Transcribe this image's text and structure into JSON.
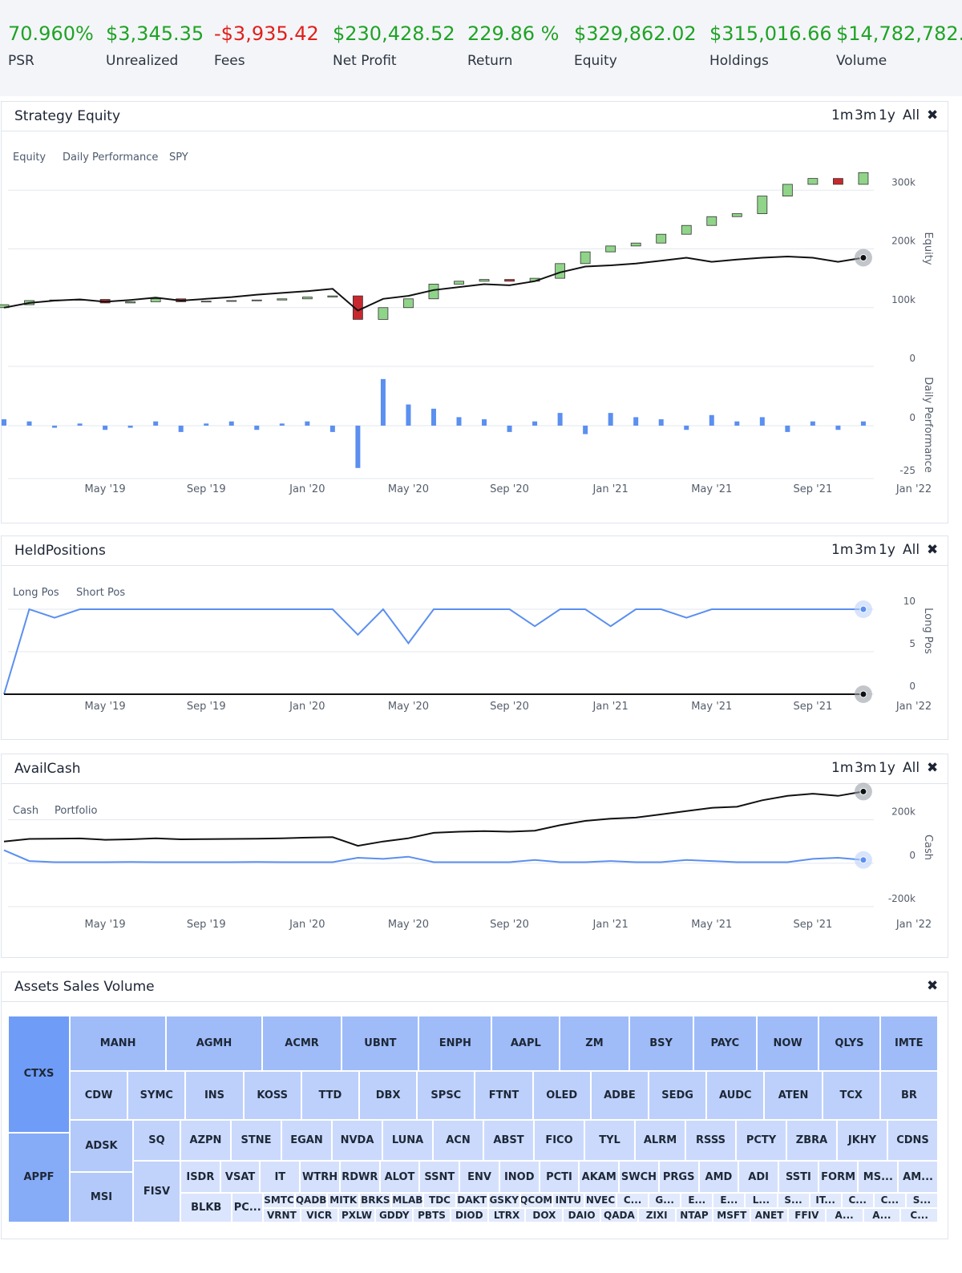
{
  "stats": [
    {
      "value": "70.960%",
      "label": "PSR",
      "color": "#1fa326"
    },
    {
      "value": "$3,345.35",
      "label": "Unrealized",
      "color": "#1fa326"
    },
    {
      "value": "-$3,935.42",
      "label": "Fees",
      "color": "#e0201c"
    },
    {
      "value": "$230,428.52",
      "label": "Net Profit",
      "color": "#1fa326"
    },
    {
      "value": "229.86 %",
      "label": "Return",
      "color": "#1fa326"
    },
    {
      "value": "$329,862.02",
      "label": "Equity",
      "color": "#1fa326"
    },
    {
      "value": "$315,016.66",
      "label": "Holdings",
      "color": "#1fa326"
    },
    {
      "value": "$14,782,782.",
      "label": "Volume",
      "color": "#1fa326"
    }
  ],
  "range_buttons": [
    "1m",
    "3m",
    "1y",
    "All"
  ],
  "close_icon": "✖",
  "chart_data": [
    {
      "type": "candlestick",
      "title": "Strategy Equity",
      "x": [
        "2019-01",
        "2019-02",
        "2019-03",
        "2019-04",
        "2019-05",
        "2019-06",
        "2019-07",
        "2019-08",
        "2019-09",
        "2019-10",
        "2019-11",
        "2019-12",
        "2020-01",
        "2020-02",
        "2020-03",
        "2020-04",
        "2020-05",
        "2020-06",
        "2020-07",
        "2020-08",
        "2020-09",
        "2020-10",
        "2020-11",
        "2020-12",
        "2021-01",
        "2021-02",
        "2021-03",
        "2021-04",
        "2021-05",
        "2021-06",
        "2021-07",
        "2021-08",
        "2021-09",
        "2021-10",
        "2021-11"
      ],
      "xlim": [
        "2019-01",
        "2022-01"
      ],
      "xticks": [
        {
          "value": "2019-05",
          "label": "May '19"
        },
        {
          "value": "2019-09",
          "label": "Sep '19"
        },
        {
          "value": "2020-01",
          "label": "Jan '20"
        },
        {
          "value": "2020-05",
          "label": "May '20"
        },
        {
          "value": "2020-09",
          "label": "Sep '20"
        },
        {
          "value": "2021-01",
          "label": "Jan '21"
        },
        {
          "value": "2021-05",
          "label": "May '21"
        },
        {
          "value": "2021-09",
          "label": "Sep '21"
        },
        {
          "value": "2022-01",
          "label": "Jan '22"
        }
      ],
      "ylim": [
        0,
        370000
      ],
      "yticks": [
        0,
        {
          "value": 100000,
          "label": "100k"
        },
        {
          "value": 200000,
          "label": "200k"
        },
        {
          "value": 300000,
          "label": "300k"
        }
      ],
      "y_label": "Equity",
      "y2lim": [
        -25,
        28
      ],
      "y2ticks": [
        -25,
        0
      ],
      "y2_label": "Daily Performance",
      "series": [
        {
          "name": "Equity",
          "type": "candlestick",
          "up_color": "#90d48a",
          "down_color": "#c8282d",
          "open": [
            100000,
            105000,
            112000,
            113000,
            114000,
            108000,
            110000,
            115000,
            110000,
            111000,
            112000,
            113000,
            115000,
            118000,
            120000,
            80000,
            100000,
            115000,
            140000,
            145000,
            148000,
            145000,
            150000,
            175000,
            195000,
            205000,
            210000,
            225000,
            240000,
            255000,
            260000,
            290000,
            310000,
            320000,
            310000
          ],
          "close": [
            105000,
            112000,
            113000,
            114000,
            108000,
            110000,
            115000,
            110000,
            111000,
            112000,
            113000,
            115000,
            118000,
            120000,
            80000,
            100000,
            115000,
            140000,
            145000,
            148000,
            145000,
            150000,
            175000,
            195000,
            205000,
            210000,
            225000,
            240000,
            255000,
            260000,
            290000,
            310000,
            320000,
            310000,
            330000
          ]
        },
        {
          "name": "Daily Performance",
          "type": "bar",
          "axis": "y2",
          "color": "#5b8ff0",
          "values": [
            3,
            2,
            -1,
            1,
            -2,
            -1,
            2,
            -3,
            1,
            2,
            -2,
            1,
            2,
            -3,
            -20,
            22,
            10,
            8,
            4,
            3,
            -3,
            2,
            6,
            -4,
            6,
            4,
            3,
            -2,
            5,
            2,
            4,
            -3,
            2,
            -2,
            2
          ]
        },
        {
          "name": "SPY",
          "type": "line",
          "color": "#111111",
          "values": [
            100000,
            108000,
            112000,
            114000,
            110000,
            113000,
            117000,
            112000,
            115000,
            118000,
            122000,
            125000,
            128000,
            132000,
            95000,
            115000,
            120000,
            130000,
            135000,
            140000,
            138000,
            145000,
            160000,
            170000,
            172000,
            175000,
            180000,
            185000,
            178000,
            182000,
            185000,
            187000,
            185000,
            178000,
            185000
          ]
        }
      ]
    },
    {
      "type": "line",
      "title": "HeldPositions",
      "x": [
        "2019-01",
        "2019-02",
        "2019-03",
        "2019-04",
        "2019-05",
        "2019-06",
        "2019-07",
        "2019-08",
        "2019-09",
        "2019-10",
        "2019-11",
        "2019-12",
        "2020-01",
        "2020-02",
        "2020-03",
        "2020-04",
        "2020-05",
        "2020-06",
        "2020-07",
        "2020-08",
        "2020-09",
        "2020-10",
        "2020-11",
        "2020-12",
        "2021-01",
        "2021-02",
        "2021-03",
        "2021-04",
        "2021-05",
        "2021-06",
        "2021-07",
        "2021-08",
        "2021-09",
        "2021-10",
        "2021-11"
      ],
      "xlim": [
        "2019-01",
        "2022-01"
      ],
      "xticks": [
        {
          "value": "2019-05",
          "label": "May '19"
        },
        {
          "value": "2019-09",
          "label": "Sep '19"
        },
        {
          "value": "2020-01",
          "label": "Jan '20"
        },
        {
          "value": "2020-05",
          "label": "May '20"
        },
        {
          "value": "2020-09",
          "label": "Sep '20"
        },
        {
          "value": "2021-01",
          "label": "Jan '21"
        },
        {
          "value": "2021-05",
          "label": "May '21"
        },
        {
          "value": "2021-09",
          "label": "Sep '21"
        },
        {
          "value": "2022-01",
          "label": "Jan '22"
        }
      ],
      "ylim": [
        0,
        10
      ],
      "yticks": [
        0,
        5,
        10
      ],
      "y_label": "Long Pos",
      "series": [
        {
          "name": "Long Pos",
          "type": "line",
          "color": "#5b8ff0",
          "values": [
            0,
            10,
            9,
            10,
            10,
            10,
            10,
            10,
            10,
            10,
            10,
            10,
            10,
            10,
            7,
            10,
            6,
            10,
            10,
            10,
            10,
            8,
            10,
            10,
            8,
            10,
            10,
            9,
            10,
            10,
            10,
            10,
            10,
            10,
            10
          ]
        },
        {
          "name": "Short Pos",
          "type": "line",
          "color": "#111111",
          "values": [
            0,
            0,
            0,
            0,
            0,
            0,
            0,
            0,
            0,
            0,
            0,
            0,
            0,
            0,
            0,
            0,
            0,
            0,
            0,
            0,
            0,
            0,
            0,
            0,
            0,
            0,
            0,
            0,
            0,
            0,
            0,
            0,
            0,
            0,
            0
          ]
        }
      ]
    },
    {
      "type": "line",
      "title": "AvailCash",
      "x": [
        "2019-01",
        "2019-02",
        "2019-03",
        "2019-04",
        "2019-05",
        "2019-06",
        "2019-07",
        "2019-08",
        "2019-09",
        "2019-10",
        "2019-11",
        "2019-12",
        "2020-01",
        "2020-02",
        "2020-03",
        "2020-04",
        "2020-05",
        "2020-06",
        "2020-07",
        "2020-08",
        "2020-09",
        "2020-10",
        "2020-11",
        "2020-12",
        "2021-01",
        "2021-02",
        "2021-03",
        "2021-04",
        "2021-05",
        "2021-06",
        "2021-07",
        "2021-08",
        "2021-09",
        "2021-10",
        "2021-11"
      ],
      "xlim": [
        "2019-01",
        "2022-01"
      ],
      "xticks": [
        {
          "value": "2019-05",
          "label": "May '19"
        },
        {
          "value": "2019-09",
          "label": "Sep '19"
        },
        {
          "value": "2020-01",
          "label": "Jan '20"
        },
        {
          "value": "2020-05",
          "label": "May '20"
        },
        {
          "value": "2020-09",
          "label": "Sep '20"
        },
        {
          "value": "2021-01",
          "label": "Jan '21"
        },
        {
          "value": "2021-05",
          "label": "May '21"
        },
        {
          "value": "2021-09",
          "label": "Sep '21"
        },
        {
          "value": "2022-01",
          "label": "Jan '22"
        }
      ],
      "ylim": [
        -200000,
        350000
      ],
      "yticks": [
        {
          "value": -200000,
          "label": "-200k"
        },
        0,
        {
          "value": 200000,
          "label": "200k"
        }
      ],
      "y_label": "Cash",
      "series": [
        {
          "name": "Cash",
          "type": "line",
          "color": "#5b8ff0",
          "values": [
            60000,
            10000,
            5000,
            5000,
            5000,
            6000,
            5000,
            5000,
            5000,
            5000,
            6000,
            5000,
            5000,
            5000,
            25000,
            20000,
            30000,
            5000,
            5000,
            5000,
            5000,
            15000,
            5000,
            5000,
            10000,
            5000,
            5000,
            15000,
            10000,
            5000,
            5000,
            5000,
            20000,
            25000,
            15000
          ]
        },
        {
          "name": "Portfolio",
          "type": "line",
          "color": "#111111",
          "values": [
            100000,
            112000,
            113000,
            114000,
            108000,
            110000,
            115000,
            110000,
            111000,
            112000,
            113000,
            115000,
            118000,
            120000,
            80000,
            100000,
            115000,
            140000,
            145000,
            148000,
            145000,
            150000,
            175000,
            195000,
            205000,
            210000,
            225000,
            240000,
            255000,
            260000,
            290000,
            310000,
            320000,
            310000,
            330000
          ]
        }
      ]
    }
  ],
  "treemap": {
    "title": "Assets Sales Volume",
    "side": [
      "CTXS",
      "APPF"
    ],
    "row1": [
      "MANH",
      "AGMH",
      "ACMR",
      "UBNT",
      "ENPH",
      "AAPL",
      "ZM",
      "BSY",
      "PAYC",
      "NOW",
      "QLYS",
      "IMTE"
    ],
    "row2": [
      "CDW",
      "SYMC",
      "INS",
      "KOSS",
      "TTD",
      "DBX",
      "SPSC",
      "FTNT",
      "OLED",
      "ADBE",
      "SEDG",
      "AUDC",
      "ATEN",
      "TCX",
      "BR"
    ],
    "col_a": [
      "ADSK",
      "MSI"
    ],
    "col_b": [
      "SQ",
      "FISV"
    ],
    "row3": [
      "AZPN",
      "STNE",
      "EGAN",
      "NVDA",
      "LUNA",
      "ACN",
      "ABST",
      "FICO",
      "TYL",
      "ALRM",
      "RSSS",
      "PCTY",
      "ZBRA",
      "JKHY",
      "CDNS"
    ],
    "row4": [
      "ISDR",
      "VSAT",
      "IT",
      "WTRH",
      "RDWR",
      "ALOT",
      "SSNT",
      "ENV",
      "INOD",
      "PCTI",
      "AKAM",
      "SWCH",
      "PRGS",
      "AMD",
      "ADI",
      "SSTI",
      "FORM",
      "MS...",
      "AM..."
    ],
    "row5_side": [
      "BLKB",
      "PC..."
    ],
    "row5_top": [
      "SMTC",
      "QADB",
      "MITK",
      "BRKS",
      "MLAB",
      "TDC",
      "DAKT",
      "GSKY",
      "QCOM",
      "INTU",
      "NVEC",
      "C...",
      "G...",
      "E...",
      "E...",
      "L...",
      "S...",
      "IT...",
      "C...",
      "C...",
      "S..."
    ],
    "row5_bottom": [
      "VRNT",
      "VICR",
      "PXLW",
      "GDDY",
      "PBTS",
      "DIOD",
      "LTRX",
      "DOX",
      "DAIO",
      "QADA",
      "ZIXI",
      "NTAP",
      "MSFT",
      "ANET",
      "FFIV",
      "A...",
      "A...",
      "C..."
    ]
  }
}
